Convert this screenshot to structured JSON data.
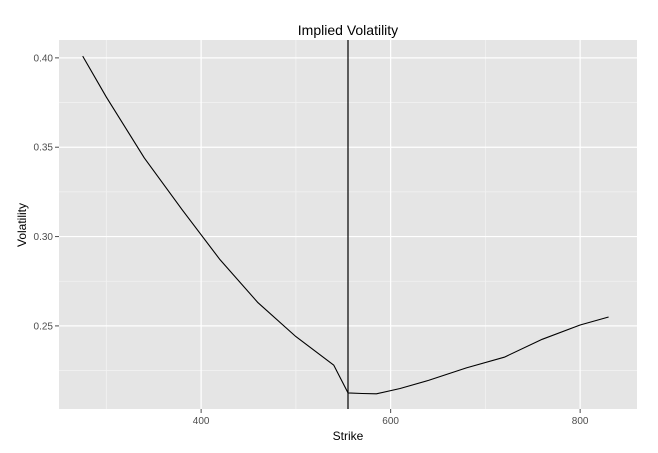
{
  "chart_data": {
    "type": "line",
    "title": "Implied Volatility",
    "xlabel": "Strike",
    "ylabel": "Volatility",
    "xlim": [
      250,
      860
    ],
    "ylim": [
      0.2035,
      0.41
    ],
    "x_ticks": [
      {
        "value": 400,
        "label": "400"
      },
      {
        "value": 600,
        "label": "600"
      },
      {
        "value": 800,
        "label": "800"
      }
    ],
    "x_minor_ticks": [
      300,
      500,
      700
    ],
    "y_ticks": [
      {
        "value": 0.25,
        "label": "0.25"
      },
      {
        "value": 0.3,
        "label": "0.30"
      },
      {
        "value": 0.35,
        "label": "0.35"
      },
      {
        "value": 0.4,
        "label": "0.40"
      }
    ],
    "y_minor_ticks": [
      0.225,
      0.275,
      0.325,
      0.375
    ],
    "grid": true,
    "vertical_line_x": 555,
    "series": [
      {
        "color": "#000000",
        "x": [
          275,
          300,
          340,
          380,
          420,
          460,
          500,
          540,
          555,
          570,
          585,
          610,
          640,
          680,
          720,
          760,
          800,
          830
        ],
        "y": [
          0.401,
          0.378,
          0.344,
          0.315,
          0.287,
          0.263,
          0.244,
          0.228,
          0.2125,
          0.2122,
          0.212,
          0.215,
          0.2195,
          0.2265,
          0.2325,
          0.2425,
          0.2505,
          0.255
        ]
      }
    ]
  },
  "colors": {
    "panel_background": "#e5e5e5",
    "grid_major": "#ffffff",
    "grid_minor": "#f2f2f2",
    "line": "#000000"
  }
}
